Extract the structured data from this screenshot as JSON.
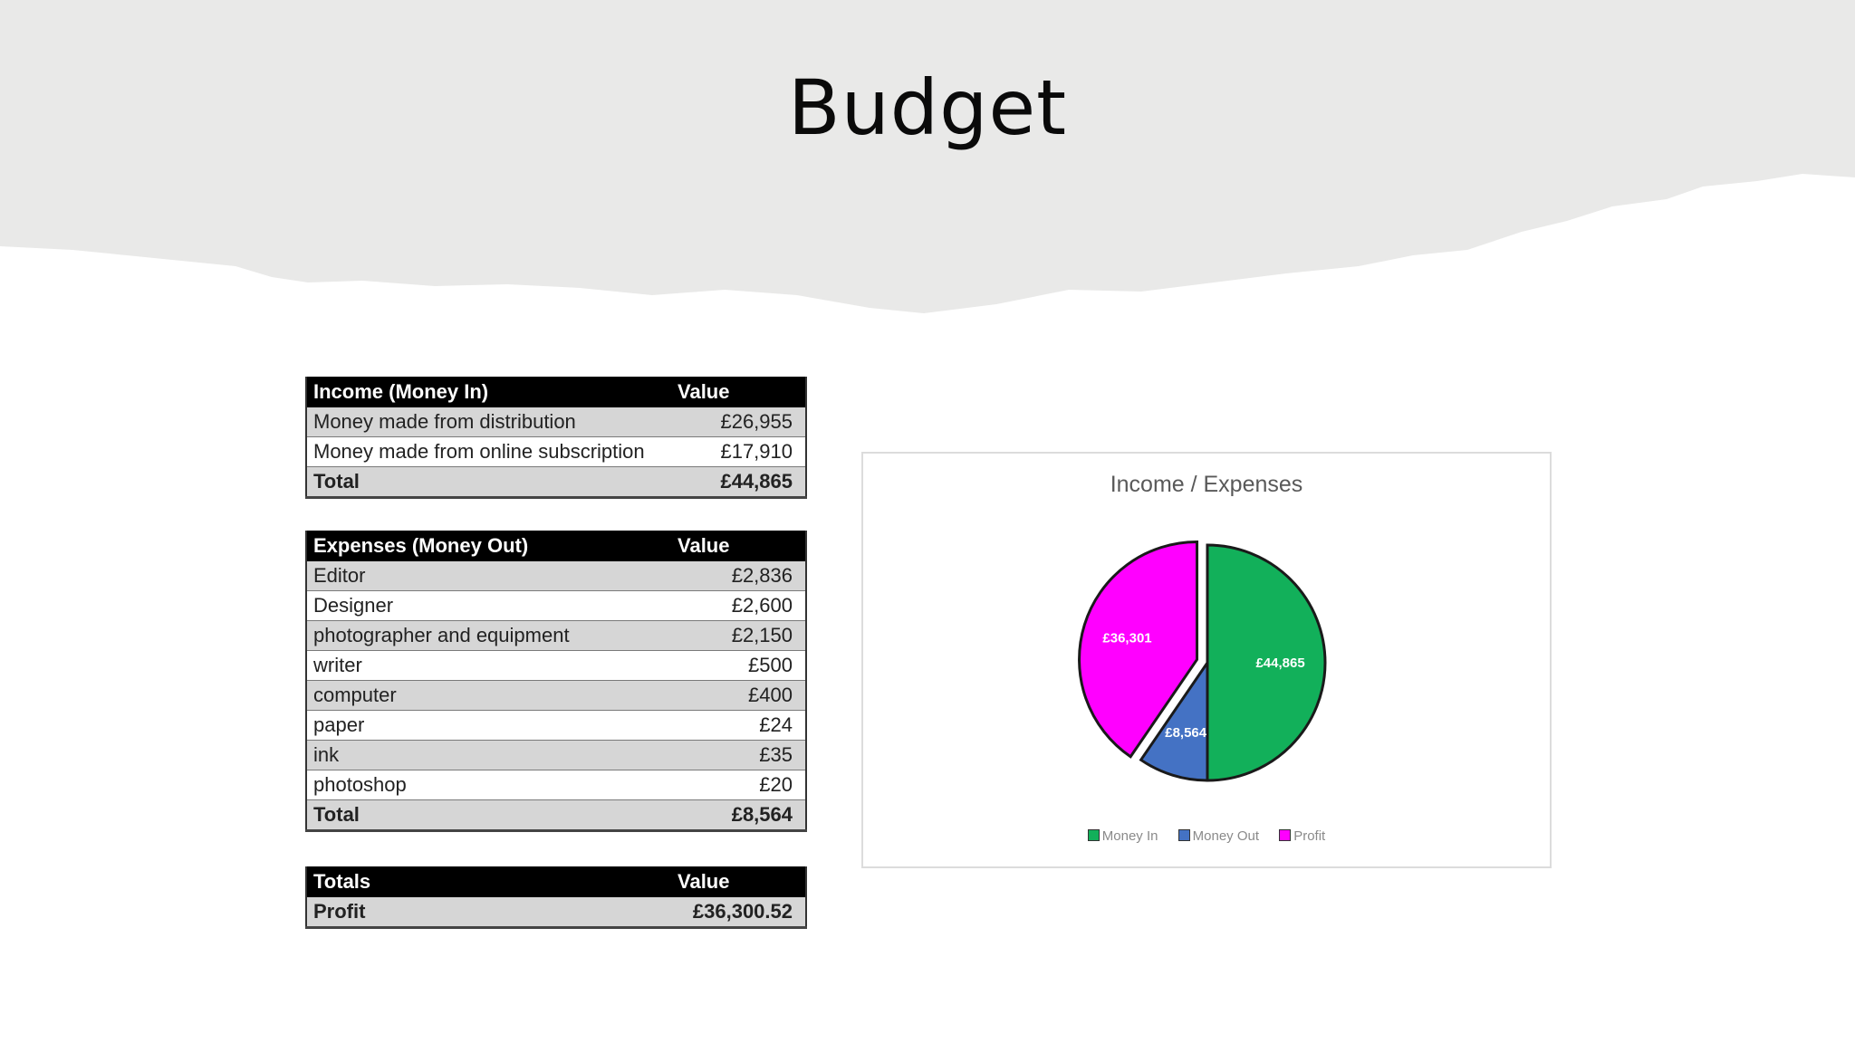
{
  "slide": {
    "title": "Budget"
  },
  "income_table": {
    "header": {
      "label": "Income (Money In)",
      "value": "Value"
    },
    "rows": [
      {
        "label": "Money made from distribution",
        "value": "£26,955"
      },
      {
        "label": "Money made from online subscription",
        "value": "£17,910"
      }
    ],
    "total": {
      "label": "Total",
      "value": "£44,865"
    }
  },
  "expenses_table": {
    "header": {
      "label": "Expenses (Money Out)",
      "value": "Value"
    },
    "rows": [
      {
        "label": "Editor",
        "value": "£2,836"
      },
      {
        "label": "Designer",
        "value": "£2,600"
      },
      {
        "label": "photographer and equipment",
        "value": "£2,150"
      },
      {
        "label": "writer",
        "value": "£500"
      },
      {
        "label": "computer",
        "value": "£400"
      },
      {
        "label": "paper",
        "value": "£24"
      },
      {
        "label": "ink",
        "value": "£35"
      },
      {
        "label": "photoshop",
        "value": "£20"
      }
    ],
    "total": {
      "label": "Total",
      "value": "£8,564"
    }
  },
  "totals_table": {
    "header": {
      "label": "Totals",
      "value": "Value"
    },
    "rows": [
      {
        "label": "Profit",
        "value": "£36,300.52"
      }
    ]
  },
  "chart_data": {
    "type": "pie",
    "title": "Income / Expenses",
    "categories": [
      "Money In",
      "Money Out",
      "Profit"
    ],
    "values": [
      44865,
      8564,
      36301
    ],
    "data_labels": [
      "£44,865",
      "£8,564",
      "£36,301"
    ],
    "colors": [
      "#12b05a",
      "#4472c4",
      "#ff00ff"
    ],
    "exploded": [
      "Profit"
    ],
    "legend_position": "bottom"
  },
  "colors": {
    "header_band": "#e9e9e8",
    "table_header": "#000000",
    "table_shaded_row": "#d6d6d6"
  }
}
